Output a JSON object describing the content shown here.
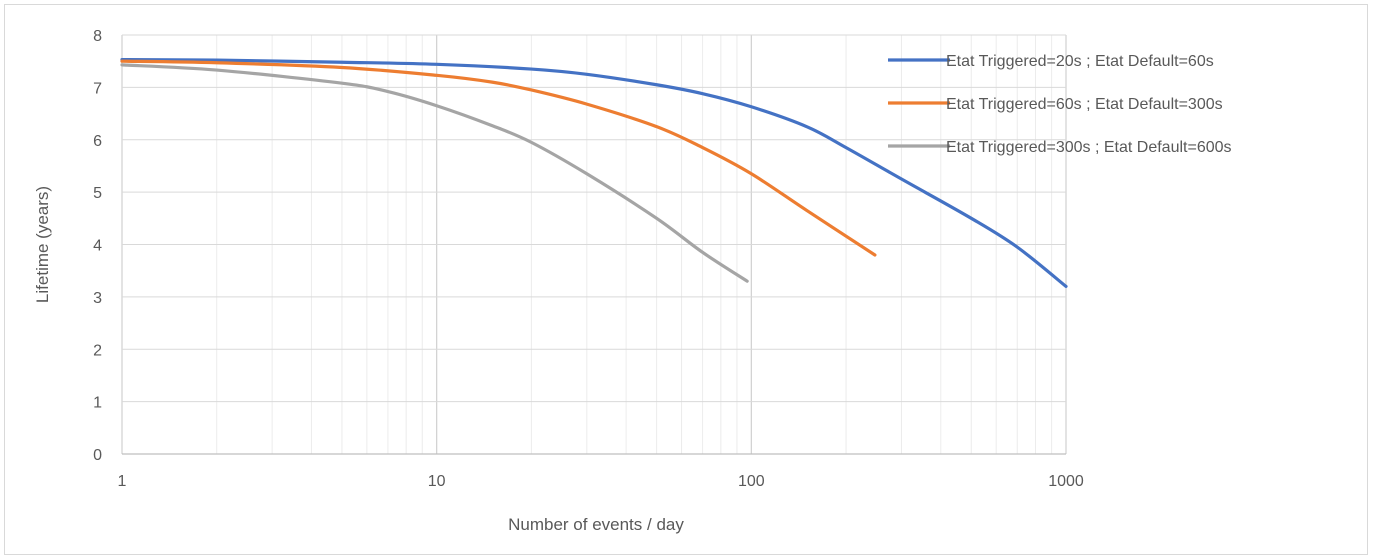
{
  "chart_data": {
    "type": "line",
    "title": "",
    "xlabel": "Number of events / day",
    "ylabel": "Lifetime (years)",
    "x_scale": "log",
    "xlim": [
      1,
      1000
    ],
    "ylim": [
      0,
      8
    ],
    "x_ticks": [
      "1",
      "10",
      "100",
      "1000"
    ],
    "y_ticks": [
      "0",
      "1",
      "2",
      "3",
      "4",
      "5",
      "6",
      "7",
      "8"
    ],
    "grid": true,
    "legend_position": "top-right",
    "series": [
      {
        "name": "Etat Triggered=20s ; Etat Default=60s",
        "color": "#4472c4",
        "points": [
          [
            1,
            7.53
          ],
          [
            2,
            7.52
          ],
          [
            5,
            7.48
          ],
          [
            10,
            7.44
          ],
          [
            20,
            7.35
          ],
          [
            30,
            7.25
          ],
          [
            50,
            7.05
          ],
          [
            70,
            6.88
          ],
          [
            100,
            6.63
          ],
          [
            150,
            6.25
          ],
          [
            200,
            5.85
          ],
          [
            300,
            5.25
          ],
          [
            500,
            4.5
          ],
          [
            700,
            3.95
          ],
          [
            1000,
            3.2
          ]
        ]
      },
      {
        "name": "Etat Triggered=60s ; Etat Default=300s",
        "color": "#ed7d31",
        "points": [
          [
            1,
            7.5
          ],
          [
            2,
            7.47
          ],
          [
            5,
            7.38
          ],
          [
            10,
            7.23
          ],
          [
            15,
            7.1
          ],
          [
            20,
            6.95
          ],
          [
            30,
            6.68
          ],
          [
            50,
            6.25
          ],
          [
            70,
            5.85
          ],
          [
            100,
            5.35
          ],
          [
            150,
            4.65
          ],
          [
            247,
            3.8
          ]
        ]
      },
      {
        "name": "Etat Triggered=300s ; Etat Default=600s",
        "color": "#a5a5a5",
        "points": [
          [
            1,
            7.43
          ],
          [
            2,
            7.33
          ],
          [
            5,
            7.08
          ],
          [
            7,
            6.92
          ],
          [
            10,
            6.65
          ],
          [
            15,
            6.27
          ],
          [
            20,
            5.95
          ],
          [
            30,
            5.35
          ],
          [
            50,
            4.5
          ],
          [
            70,
            3.85
          ],
          [
            97,
            3.3
          ]
        ]
      }
    ]
  }
}
